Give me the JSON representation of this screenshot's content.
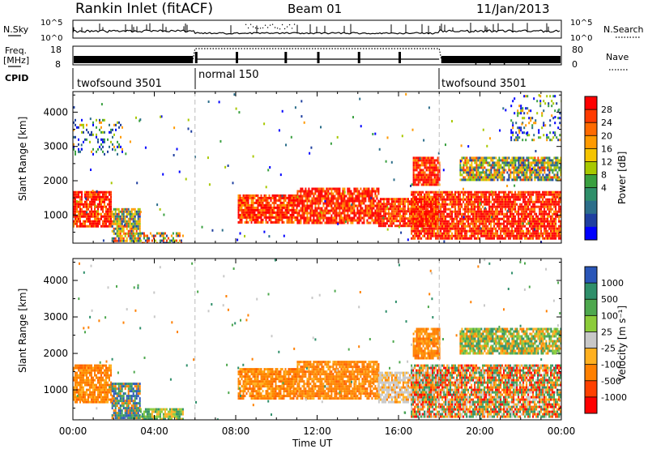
{
  "header": {
    "station": "Rankin Inlet (fitACF)",
    "beam": "Beam 01",
    "date": "11/Jan/2013"
  },
  "noise_panel": {
    "left_label": "N.Sky",
    "right_label": "N.Search",
    "left_ticks": [
      "10^5",
      "10^0"
    ],
    "right_ticks": [
      "10^5",
      "10^0"
    ]
  },
  "freq_panel": {
    "left_label_1": "Freq.",
    "left_label_2": "[MHz]",
    "right_label": "Nave",
    "left_ticks": [
      "18",
      "8"
    ],
    "right_ticks": [
      "80",
      "0"
    ]
  },
  "cpid_panel": {
    "label": "CPID",
    "segments": [
      {
        "name": "twofsound 3501",
        "start": "00:00",
        "end": "06:00"
      },
      {
        "name": "normal 150",
        "start": "06:00",
        "end": "18:00"
      },
      {
        "name": "twofsound 3501",
        "start": "18:00",
        "end": "24:00"
      }
    ]
  },
  "x_axis": {
    "label": "Time UT",
    "ticks": [
      "00:00",
      "04:00",
      "08:00",
      "12:00",
      "16:00",
      "20:00",
      "00:00"
    ]
  },
  "chart_data": [
    {
      "type": "heatmap",
      "panel": "power",
      "ylabel": "Slant Range [km]",
      "yticks": [
        "1000",
        "2000",
        "3000",
        "4000"
      ],
      "ylim": [
        180,
        4600
      ],
      "xlim_hours": [
        0,
        24
      ],
      "colorbar": {
        "label": "Power [dB]",
        "ticks": [
          "28",
          "24",
          "20",
          "16",
          "12",
          "8",
          "4"
        ],
        "colors": [
          "#ff0000",
          "#ff3a00",
          "#ff6a00",
          "#ff9a00",
          "#f5c400",
          "#a8c800",
          "#3aa040",
          "#2f8f6a",
          "#2c6e8a",
          "#1f3fa0",
          "#0000ff"
        ]
      },
      "regions": [
        {
          "t": [
            0.0,
            1.9
          ],
          "r": [
            650,
            1700
          ],
          "level": "high"
        },
        {
          "t": [
            1.9,
            3.3
          ],
          "r": [
            250,
            1200
          ],
          "level": "mixed"
        },
        {
          "t": [
            3.3,
            5.4
          ],
          "r": [
            200,
            500
          ],
          "level": "low"
        },
        {
          "t": [
            8.1,
            11.0
          ],
          "r": [
            750,
            1600
          ],
          "level": "high"
        },
        {
          "t": [
            11.0,
            15.0
          ],
          "r": [
            800,
            1800
          ],
          "level": "high"
        },
        {
          "t": [
            15.0,
            18.0
          ],
          "r": [
            700,
            1500
          ],
          "level": "high"
        },
        {
          "t": [
            16.6,
            24.0
          ],
          "r": [
            300,
            1700
          ],
          "level": "high"
        },
        {
          "t": [
            16.7,
            18.0
          ],
          "r": [
            1900,
            2700
          ],
          "level": "high"
        },
        {
          "t": [
            19.0,
            24.0
          ],
          "r": [
            2000,
            2700
          ],
          "level": "mixed"
        },
        {
          "t": [
            0.0,
            2.4
          ],
          "r": [
            2800,
            3800
          ],
          "level": "sparse"
        },
        {
          "t": [
            21.5,
            24.0
          ],
          "r": [
            3200,
            4500
          ],
          "level": "sparse"
        }
      ]
    },
    {
      "type": "heatmap",
      "panel": "velocity",
      "ylabel": "Slant Range [km]",
      "yticks": [
        "1000",
        "2000",
        "3000",
        "4000"
      ],
      "ylim": [
        180,
        4600
      ],
      "xlim_hours": [
        0,
        24
      ],
      "colorbar": {
        "label": "Velocity [m s⁻¹]",
        "ticks": [
          "1000",
          "500",
          "100",
          "25",
          "-25",
          "-100",
          "-500",
          "-1000"
        ],
        "colors": [
          "#2a56b8",
          "#2f8f6a",
          "#4ea84e",
          "#8ccc3a",
          "#c8c8c8",
          "#ffb020",
          "#ff8000",
          "#ff4000",
          "#ff0000"
        ]
      },
      "regions": [
        {
          "t": [
            0.0,
            1.9
          ],
          "r": [
            650,
            1700
          ],
          "level": "orange"
        },
        {
          "t": [
            1.9,
            3.3
          ],
          "r": [
            250,
            1200
          ],
          "level": "blue-green"
        },
        {
          "t": [
            3.3,
            5.4
          ],
          "r": [
            200,
            500
          ],
          "level": "green"
        },
        {
          "t": [
            8.1,
            11.0
          ],
          "r": [
            750,
            1600
          ],
          "level": "orange"
        },
        {
          "t": [
            11.0,
            15.0
          ],
          "r": [
            800,
            1800
          ],
          "level": "orange"
        },
        {
          "t": [
            15.0,
            18.0
          ],
          "r": [
            700,
            1500
          ],
          "level": "gray-orange"
        },
        {
          "t": [
            16.6,
            24.0
          ],
          "r": [
            300,
            1700
          ],
          "level": "mixed"
        },
        {
          "t": [
            16.7,
            18.0
          ],
          "r": [
            1900,
            2700
          ],
          "level": "orange"
        },
        {
          "t": [
            19.0,
            24.0
          ],
          "r": [
            2000,
            2700
          ],
          "level": "green-orange"
        }
      ]
    }
  ]
}
